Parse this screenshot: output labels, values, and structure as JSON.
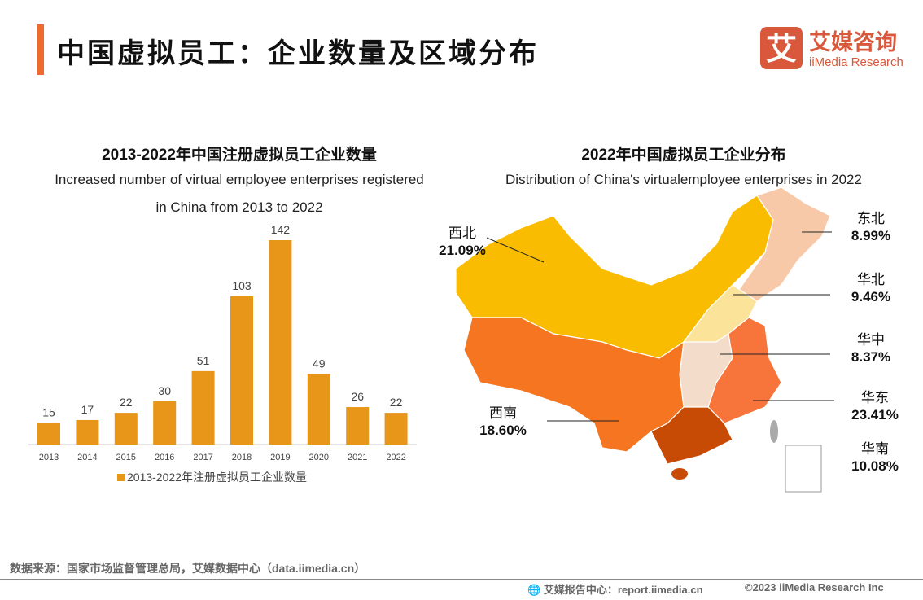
{
  "header": {
    "title": "中国虚拟员工：企业数量及区域分布",
    "accent_color": "#EE6A2E"
  },
  "logo": {
    "cn": "艾媒咨询",
    "en": "iiMedia Research",
    "mark": "艾",
    "color": "#D9573A"
  },
  "chart_data": [
    {
      "type": "bar",
      "title": "2013-2022年中国注册虚拟员工企业数量",
      "subtitle": "Increased number of virtual employee enterprises registered in China from 2013 to 2022",
      "subtitle_lines": [
        "Increased number of virtual employee enterprises registered",
        "in China from 2013 to 2022"
      ],
      "categories": [
        "2013",
        "2014",
        "2015",
        "2016",
        "2017",
        "2018",
        "2019",
        "2020",
        "2021",
        "2022"
      ],
      "series": [
        {
          "name": "2013-2022年注册虚拟员工企业数量",
          "values": [
            15,
            17,
            22,
            30,
            51,
            103,
            142,
            49,
            26,
            22
          ],
          "color": "#E8961A"
        }
      ],
      "data_labels": true,
      "legend": "bottom",
      "grid": false
    },
    {
      "type": "map",
      "title": "2022年中国虚拟员工企业分布",
      "subtitle": "Distribution of China's virtualemployee enterprises in 2022",
      "regions": [
        {
          "name": "西北",
          "value": "21.09%",
          "color": "#F9BC00"
        },
        {
          "name": "东北",
          "value": "8.99%",
          "color": "#F8C9A9"
        },
        {
          "name": "华北",
          "value": "9.46%",
          "color": "#FBE39A"
        },
        {
          "name": "华中",
          "value": "8.37%",
          "color": "#F4DCCB"
        },
        {
          "name": "华东",
          "value": "23.41%",
          "color": "#F7743A"
        },
        {
          "name": "西南",
          "value": "18.60%",
          "color": "#F57520"
        },
        {
          "name": "华南",
          "value": "10.08%",
          "color": "#C84B05"
        }
      ]
    }
  ],
  "footer": {
    "source": "数据来源：国家市场监督管理总局，艾媒数据中心（data.iimedia.cn）",
    "report": "艾媒报告中心：report.iimedia.cn",
    "copyright": "©2023  iiMedia Research  Inc"
  }
}
